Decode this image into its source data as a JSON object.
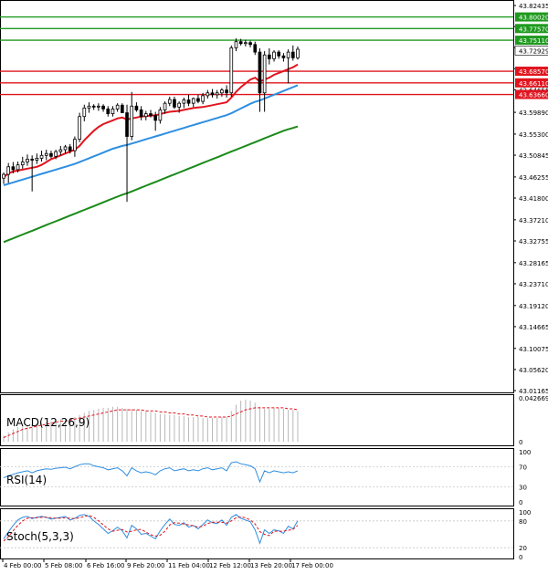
{
  "chart_data": [
    {
      "type": "candlestick",
      "panel": "price",
      "y_ticks": [
        "43.82435",
        "43.77990",
        "43.73545",
        "43.69100",
        "43.64655",
        "43.59890",
        "43.55300",
        "43.50845",
        "43.46255",
        "43.41800",
        "43.37210",
        "43.32755",
        "43.28165",
        "43.23710",
        "43.19120",
        "43.14665",
        "43.10075",
        "43.05620",
        "43.01165"
      ],
      "ylim": [
        43.0117,
        43.8244
      ],
      "levels": [
        {
          "label": "43.80020",
          "value": 43.8002,
          "color": "#1e9a1e"
        },
        {
          "label": "43.77570",
          "value": 43.7757,
          "color": "#1e9a1e"
        },
        {
          "label": "43.75110",
          "value": 43.7511,
          "color": "#1e9a1e"
        },
        {
          "label": "43.68570",
          "value": 43.6857,
          "color": "#e0141e"
        },
        {
          "label": "43.66110",
          "value": 43.6611,
          "color": "#e0141e"
        },
        {
          "label": "43.63660",
          "value": 43.6366,
          "color": "#e0141e"
        }
      ],
      "current_price": {
        "label": "43.72929",
        "value": 43.7293
      },
      "candles": [
        [
          43.46,
          43.472,
          43.448,
          43.468
        ],
        [
          43.468,
          43.492,
          43.45,
          43.484
        ],
        [
          43.484,
          43.494,
          43.47,
          43.478
        ],
        [
          43.478,
          43.495,
          43.472,
          43.488
        ],
        [
          43.488,
          43.505,
          43.48,
          43.494
        ],
        [
          43.494,
          43.51,
          43.486,
          43.5
        ],
        [
          43.5,
          43.508,
          43.432,
          43.498
        ],
        [
          43.498,
          43.512,
          43.49,
          43.502
        ],
        [
          43.502,
          43.518,
          43.495,
          43.508
        ],
        [
          43.508,
          43.52,
          43.498,
          43.512
        ],
        [
          43.512,
          43.518,
          43.502,
          43.506
        ],
        [
          43.506,
          43.52,
          43.5,
          43.516
        ],
        [
          43.516,
          43.528,
          43.508,
          43.52
        ],
        [
          43.52,
          43.53,
          43.512,
          43.526
        ],
        [
          43.526,
          43.532,
          43.512,
          43.518
        ],
        [
          43.518,
          43.548,
          43.505,
          43.542
        ],
        [
          43.542,
          43.598,
          43.536,
          43.59
        ],
        [
          43.59,
          43.615,
          43.58,
          43.608
        ],
        [
          43.608,
          43.62,
          43.598,
          43.612
        ],
        [
          43.612,
          43.616,
          43.604,
          43.61
        ],
        [
          43.61,
          43.618,
          43.602,
          43.612
        ],
        [
          43.612,
          43.616,
          43.6,
          43.606
        ],
        [
          43.606,
          43.612,
          43.59,
          43.596
        ],
        [
          43.596,
          43.612,
          43.59,
          43.606
        ],
        [
          43.606,
          43.618,
          43.6,
          43.614
        ],
        [
          43.614,
          43.618,
          43.598,
          43.598
        ],
        [
          43.598,
          43.615,
          43.41,
          43.548
        ],
        [
          43.548,
          43.642,
          43.54,
          43.612
        ],
        [
          43.612,
          43.62,
          43.6,
          43.604
        ],
        [
          43.604,
          43.612,
          43.582,
          43.59
        ],
        [
          43.59,
          43.602,
          43.582,
          43.596
        ],
        [
          43.596,
          43.604,
          43.588,
          43.592
        ],
        [
          43.592,
          43.6,
          43.56,
          43.582
        ],
        [
          43.582,
          43.61,
          43.575,
          43.604
        ],
        [
          43.604,
          43.622,
          43.596,
          43.618
        ],
        [
          43.618,
          43.632,
          43.612,
          43.626
        ],
        [
          43.626,
          43.632,
          43.606,
          43.61
        ],
        [
          43.61,
          43.622,
          43.598,
          43.618
        ],
        [
          43.618,
          43.63,
          43.608,
          43.625
        ],
        [
          43.625,
          43.636,
          43.612,
          43.618
        ],
        [
          43.618,
          43.63,
          43.61,
          43.628
        ],
        [
          43.628,
          43.636,
          43.618,
          43.622
        ],
        [
          43.622,
          43.64,
          43.616,
          43.634
        ],
        [
          43.634,
          43.646,
          43.628,
          43.64
        ],
        [
          43.64,
          43.648,
          43.63,
          43.636
        ],
        [
          43.636,
          43.646,
          43.628,
          43.64
        ],
        [
          43.64,
          43.65,
          43.632,
          43.646
        ],
        [
          43.646,
          43.656,
          43.63,
          43.64
        ],
        [
          43.64,
          43.74,
          43.632,
          43.735
        ],
        [
          43.735,
          43.755,
          43.728,
          43.748
        ],
        [
          43.748,
          43.754,
          43.74,
          43.744
        ],
        [
          43.744,
          43.752,
          43.738,
          43.746
        ],
        [
          43.746,
          43.75,
          43.736,
          43.742
        ],
        [
          43.742,
          43.748,
          43.72,
          43.726
        ],
        [
          43.726,
          43.734,
          43.6,
          43.64
        ],
        [
          43.64,
          43.728,
          43.6,
          43.72
        ],
        [
          43.72,
          43.734,
          43.7,
          43.712
        ],
        [
          43.712,
          43.73,
          43.706,
          43.726
        ],
        [
          43.726,
          43.73,
          43.712,
          43.718
        ],
        [
          43.718,
          43.724,
          43.706,
          43.714
        ],
        [
          43.714,
          43.732,
          43.66,
          43.726
        ],
        [
          43.726,
          43.74,
          43.708,
          43.714
        ],
        [
          43.714,
          43.738,
          43.71,
          43.732
        ]
      ],
      "ma_fast": [
        43.462,
        43.47,
        43.474,
        43.476,
        43.478,
        43.48,
        43.482,
        43.484,
        43.488,
        43.494,
        43.5,
        43.504,
        43.508,
        43.512,
        43.516,
        43.52,
        43.528,
        43.54,
        43.55,
        43.56,
        43.568,
        43.574,
        43.578,
        43.582,
        43.586,
        43.588,
        43.584,
        43.586,
        43.588,
        43.59,
        43.591,
        43.592,
        43.593,
        43.595,
        43.598,
        43.6,
        43.601,
        43.602,
        43.604,
        43.606,
        43.608,
        43.609,
        43.61,
        43.612,
        43.614,
        43.616,
        43.618,
        43.62,
        43.63,
        43.642,
        43.652,
        43.66,
        43.668,
        43.672,
        43.664,
        43.668,
        43.672,
        43.678,
        43.682,
        43.686,
        43.69,
        43.694,
        43.7
      ],
      "ma_mid": [
        43.445,
        43.448,
        43.451,
        43.454,
        43.457,
        43.46,
        43.463,
        43.466,
        43.469,
        43.472,
        43.475,
        43.478,
        43.481,
        43.484,
        43.487,
        43.49,
        43.494,
        43.498,
        43.502,
        43.506,
        43.51,
        43.514,
        43.518,
        43.522,
        43.525,
        43.528,
        43.53,
        43.533,
        43.536,
        43.539,
        43.542,
        43.545,
        43.548,
        43.551,
        43.554,
        43.557,
        43.56,
        43.563,
        43.566,
        43.569,
        43.572,
        43.575,
        43.578,
        43.581,
        43.584,
        43.587,
        43.59,
        43.593,
        43.597,
        43.602,
        43.607,
        43.612,
        43.617,
        43.621,
        43.624,
        43.628,
        43.632,
        43.636,
        43.64,
        43.644,
        43.648,
        43.652,
        43.656
      ],
      "ma_slow": [
        43.325,
        43.329,
        43.333,
        43.337,
        43.341,
        43.345,
        43.349,
        43.353,
        43.357,
        43.361,
        43.365,
        43.369,
        43.373,
        43.377,
        43.381,
        43.385,
        43.389,
        43.393,
        43.397,
        43.401,
        43.405,
        43.409,
        43.413,
        43.417,
        43.421,
        43.425,
        43.428,
        43.432,
        43.436,
        43.44,
        43.444,
        43.448,
        43.452,
        43.456,
        43.46,
        43.464,
        43.468,
        43.472,
        43.476,
        43.48,
        43.484,
        43.488,
        43.492,
        43.496,
        43.5,
        43.504,
        43.508,
        43.512,
        43.516,
        43.52,
        43.524,
        43.528,
        43.532,
        43.536,
        43.54,
        43.544,
        43.548,
        43.552,
        43.556,
        43.56,
        43.563,
        43.566,
        43.569
      ],
      "colors": {
        "ma_fast": "#e0141e",
        "ma_mid": "#2e8ee0",
        "ma_slow": "#1a8a1a"
      }
    },
    {
      "type": "bar",
      "panel": "macd",
      "label": "MACD(12,26,9)",
      "y_ticks": [
        "0.042669",
        "0"
      ],
      "ylim": [
        0,
        0.042669
      ],
      "histogram": [
        0.006,
        0.009,
        0.012,
        0.014,
        0.015,
        0.016,
        0.017,
        0.018,
        0.018,
        0.019,
        0.02,
        0.021,
        0.022,
        0.022,
        0.023,
        0.024,
        0.026,
        0.028,
        0.03,
        0.031,
        0.032,
        0.033,
        0.033,
        0.034,
        0.034,
        0.033,
        0.032,
        0.032,
        0.031,
        0.03,
        0.03,
        0.029,
        0.028,
        0.027,
        0.027,
        0.026,
        0.026,
        0.025,
        0.025,
        0.024,
        0.024,
        0.024,
        0.023,
        0.023,
        0.023,
        0.023,
        0.024,
        0.024,
        0.03,
        0.036,
        0.04,
        0.041,
        0.04,
        0.038,
        0.034,
        0.032,
        0.032,
        0.033,
        0.033,
        0.032,
        0.031,
        0.031,
        0.03
      ],
      "signal": [
        0.004,
        0.006,
        0.008,
        0.01,
        0.012,
        0.013,
        0.014,
        0.015,
        0.016,
        0.017,
        0.018,
        0.019,
        0.02,
        0.02,
        0.021,
        0.022,
        0.023,
        0.024,
        0.025,
        0.026,
        0.027,
        0.028,
        0.029,
        0.03,
        0.031,
        0.031,
        0.031,
        0.031,
        0.031,
        0.031,
        0.03,
        0.03,
        0.03,
        0.029,
        0.029,
        0.028,
        0.028,
        0.027,
        0.027,
        0.026,
        0.026,
        0.025,
        0.025,
        0.024,
        0.024,
        0.024,
        0.024,
        0.024,
        0.025,
        0.027,
        0.029,
        0.031,
        0.032,
        0.033,
        0.033,
        0.033,
        0.033,
        0.033,
        0.033,
        0.033,
        0.032,
        0.032,
        0.031
      ]
    },
    {
      "type": "line",
      "panel": "rsi",
      "label": "RSI(14)",
      "y_ticks": [
        "100",
        "70",
        "30",
        "0"
      ],
      "ylim": [
        0,
        100
      ],
      "values": [
        48,
        52,
        55,
        58,
        60,
        62,
        58,
        62,
        64,
        66,
        65,
        67,
        68,
        69,
        66,
        70,
        74,
        76,
        76,
        72,
        70,
        68,
        64,
        66,
        68,
        62,
        52,
        68,
        62,
        58,
        60,
        58,
        54,
        62,
        66,
        68,
        62,
        64,
        66,
        62,
        64,
        62,
        66,
        68,
        64,
        66,
        68,
        62,
        78,
        80,
        76,
        74,
        72,
        66,
        40,
        62,
        58,
        62,
        60,
        58,
        60,
        58,
        62
      ],
      "color": "#2e8ee0"
    },
    {
      "type": "line",
      "panel": "stoch",
      "label": "Stoch(5,3,3)",
      "y_ticks": [
        "100",
        "80",
        "20",
        "0"
      ],
      "ylim": [
        0,
        100
      ],
      "main": [
        40,
        55,
        70,
        82,
        88,
        90,
        85,
        88,
        90,
        88,
        84,
        86,
        88,
        90,
        82,
        86,
        92,
        94,
        90,
        80,
        72,
        62,
        52,
        58,
        66,
        58,
        42,
        70,
        62,
        50,
        52,
        46,
        40,
        58,
        72,
        84,
        72,
        70,
        76,
        66,
        70,
        62,
        72,
        82,
        76,
        74,
        82,
        70,
        88,
        94,
        86,
        82,
        78,
        60,
        30,
        60,
        52,
        60,
        58,
        52,
        68,
        62,
        80
      ],
      "signal": [
        35,
        45,
        58,
        70,
        80,
        86,
        87,
        87,
        88,
        88,
        87,
        86,
        86,
        87,
        86,
        85,
        87,
        90,
        92,
        88,
        80,
        71,
        62,
        57,
        59,
        61,
        55,
        57,
        60,
        61,
        55,
        49,
        46,
        48,
        57,
        71,
        76,
        75,
        73,
        71,
        69,
        66,
        68,
        74,
        77,
        77,
        77,
        75,
        80,
        87,
        89,
        87,
        82,
        73,
        56,
        50,
        47,
        57,
        57,
        57,
        59,
        61,
        70
      ],
      "color_main": "#2e8ee0",
      "color_signal": "#e0141e"
    }
  ],
  "x_ticks": [
    "4 Feb 00:00",
    "5 Feb 08:00",
    "6 Feb 16:00",
    "9 Feb 20:00",
    "11 Feb 04:00",
    "12 Feb 12:00",
    "13 Feb 20:00",
    "17 Feb 00:00"
  ]
}
